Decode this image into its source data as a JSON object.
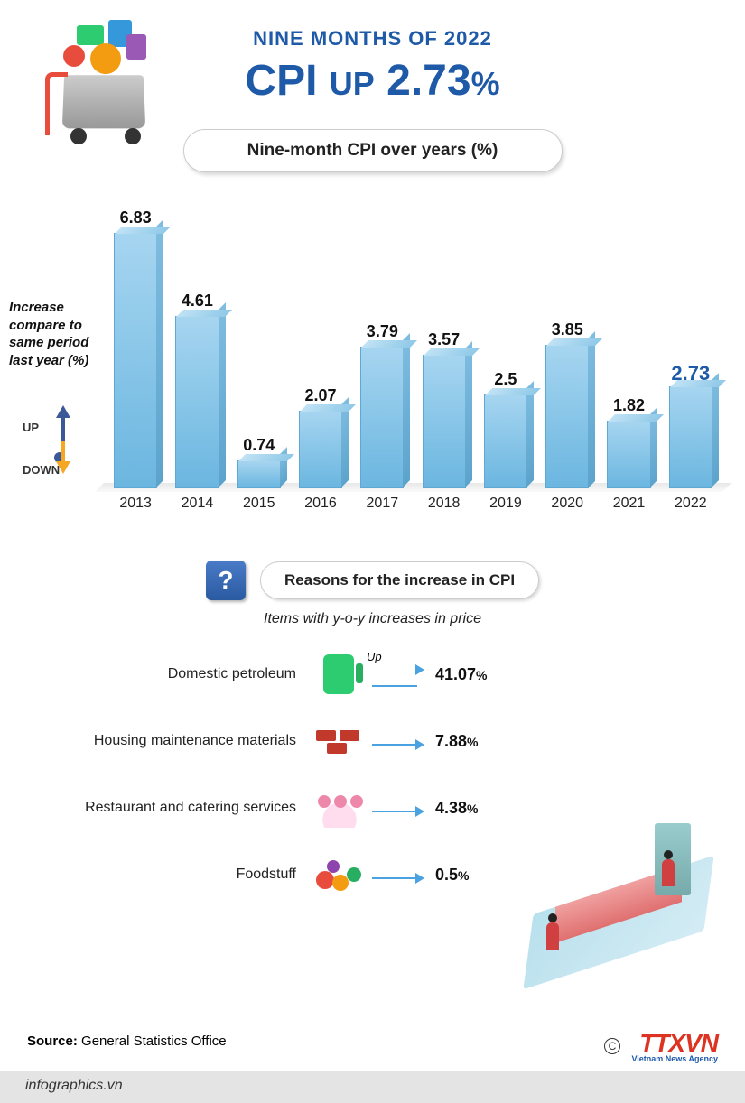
{
  "header": {
    "subtitle": "NINE MONTHS OF 2022",
    "title_prefix": "CPI",
    "title_mid": "UP",
    "title_value": "2.73",
    "title_suffix": "%"
  },
  "chart": {
    "type": "bar",
    "title": "Nine-month CPI over years (%)",
    "ylabel": "Increase compare to same period last year (%)",
    "up_label": "UP",
    "down_label": "DOWN",
    "categories": [
      "2013",
      "2014",
      "2015",
      "2016",
      "2017",
      "2018",
      "2019",
      "2020",
      "2021",
      "2022"
    ],
    "values": [
      6.83,
      4.61,
      0.74,
      2.07,
      3.79,
      3.57,
      2.5,
      3.85,
      1.82,
      2.73
    ],
    "value_labels": [
      "6.83",
      "4.61",
      "0.74",
      "2.07",
      "3.79",
      "3.57",
      "2.5",
      "3.85",
      "1.82",
      "2.73"
    ],
    "highlight_index": 9,
    "bar_fill_top": "#a6d5f0",
    "bar_fill_bottom": "#6bb6e0",
    "bar_border": "#5da8d4",
    "highlight_color": "#1e5aa8",
    "value_color": "#111111",
    "value_fontsize": 18,
    "category_fontsize": 16,
    "ylim": [
      0,
      7
    ],
    "bar_width": 0.8,
    "background_color": "#ffffff"
  },
  "reasons": {
    "heading": "Reasons for the increase in CPI",
    "subheading": "Items with y-o-y increases in price",
    "q_icon_label": "?",
    "up_word": "Up",
    "arrow_color": "#4aa3e0",
    "items": [
      {
        "label": "Domestic petroleum",
        "value": "41.07",
        "suffix": "%",
        "icon": "fuel-pump-icon",
        "show_up": true
      },
      {
        "label": "Housing maintenance materials",
        "value": "7.88",
        "suffix": "%",
        "icon": "bricks-icon",
        "show_up": false
      },
      {
        "label": "Restaurant and catering services",
        "value": "4.38",
        "suffix": "%",
        "icon": "restaurant-icon",
        "show_up": false
      },
      {
        "label": "Foodstuff",
        "value": "0.5",
        "suffix": "%",
        "icon": "foodstuff-icon",
        "show_up": false
      }
    ]
  },
  "footer": {
    "source_label": "Source:",
    "source_value": "General Statistics Office",
    "site": "infographics.vn",
    "copyright_symbol": "C",
    "logo_main": "TTXVN",
    "logo_sub": "Vietnam News Agency"
  },
  "colors": {
    "brand_blue": "#1e5aa8",
    "accent_orange": "#f5a623",
    "logo_red": "#dd3322"
  }
}
